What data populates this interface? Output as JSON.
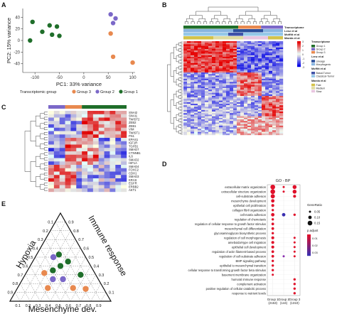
{
  "panels": {
    "A": {
      "label": "A",
      "chart_data": {
        "type": "scatter",
        "xlabel": "PC1: 33% variance",
        "ylabel": "PC2: 15% variance",
        "xlim": [
          -125,
          105
        ],
        "ylim": [
          -55,
          55
        ],
        "xticks": [
          "-100",
          "-50",
          "0",
          "50",
          "100"
        ],
        "yticks": [
          "-40",
          "-20",
          "0",
          "20",
          "40"
        ],
        "legend_title": "Transcriptomic group",
        "legend": [
          {
            "label": "Group 3",
            "color": "#e8894f"
          },
          {
            "label": "Group 2",
            "color": "#7b68c8"
          },
          {
            "label": "Group 1",
            "color": "#1f6e2a"
          }
        ],
        "points": [
          {
            "x": -110,
            "y": 0,
            "group": 1
          },
          {
            "x": -85,
            "y": 15,
            "group": 1
          },
          {
            "x": -65,
            "y": 10,
            "group": 1
          },
          {
            "x": -70,
            "y": 26,
            "group": 1
          },
          {
            "x": -55,
            "y": 24,
            "group": 1
          },
          {
            "x": -50,
            "y": 8,
            "group": 1
          },
          {
            "x": -105,
            "y": 32,
            "group": 1
          },
          {
            "x": 55,
            "y": 45,
            "group": 2
          },
          {
            "x": 65,
            "y": 38,
            "group": 2
          },
          {
            "x": 60,
            "y": 30,
            "group": 2
          },
          {
            "x": 55,
            "y": 12,
            "group": 3
          },
          {
            "x": 60,
            "y": -28,
            "group": 3
          },
          {
            "x": 100,
            "y": -38,
            "group": 3
          }
        ]
      }
    },
    "B": {
      "label": "B",
      "tracks": [
        "Transcriptome",
        "Lenz et al",
        "Moffitt et al",
        "Maeda et al"
      ],
      "legend": [
        {
          "title": "Transcriptome",
          "items": [
            {
              "label": "Group 1",
              "color": "#1f6e2a"
            },
            {
              "label": "Group 2",
              "color": "#7b68c8"
            },
            {
              "label": "Group 3",
              "color": "#e8894f"
            }
          ]
        },
        {
          "title": "Lenz et al",
          "items": [
            {
              "label": "Lineage",
              "color": "#2b4f9c"
            },
            {
              "label": "Morphogenic",
              "color": "#88b5e0"
            }
          ]
        },
        {
          "title": "Moffitt et al",
          "items": [
            {
              "label": "Basal-Tumor",
              "color": "#3f52a8"
            },
            {
              "label": "Classical-Tumor",
              "color": "#95c8e8"
            }
          ]
        },
        {
          "title": "Maeda et al",
          "items": [
            {
              "label": "Fast",
              "color": "#d4c34a"
            },
            {
              "label": "Medium",
              "color": "#e0dca0"
            },
            {
              "label": "Slow",
              "color": "#e9c5e0"
            }
          ]
        }
      ],
      "scale_ticks": [
        "3",
        "2",
        "1",
        "0",
        "-1",
        "-2",
        "-3"
      ]
    },
    "C": {
      "label": "C",
      "genes": [
        "SNAI2",
        "SNAI1",
        "TWIST2",
        "ZEB2",
        "ZEB1",
        "VIM",
        "TWIST1",
        "FN1",
        "EPAS1",
        "IGF1R",
        "TGFB1",
        "SMAD7",
        "CTNNB1",
        "IL6",
        "SMAD2",
        "HIF1A",
        "SMAD4",
        "FOXC2",
        "CDH1",
        "SMAD3",
        "KRAS",
        "EGFR",
        "ERBB2",
        "AKT1"
      ]
    },
    "D": {
      "label": "D",
      "chart_data": {
        "type": "scatter",
        "title": "GO - BP",
        "categories": [
          "Group 1\n(2153)",
          "Group 2\n(144)",
          "Group 3\n(1310)"
        ],
        "category_lines": [
          [
            "Group 1",
            "(2153)"
          ],
          [
            "Group 2",
            "(144)"
          ],
          [
            "Group 3",
            "(1310)"
          ]
        ],
        "terms": [
          "extracellular matrix organization",
          "extracellular structure organization",
          "cell-substrate adhesion",
          "mesenchyme development",
          "epithelial cell proliferation",
          "collagen fibril organization",
          "cell-matrix adhesion",
          "regulation of chemotaxis",
          "regulation of cellular response to growth factor stimulus",
          "mesenchymal cell differentiation",
          "glycosaminoglycan biosynthetic process",
          "regulation of cell morphogenesis",
          "ameboidal-type cell migration",
          "epithelial cell development",
          "regulation of actin filament-based process",
          "regulation of cell-substrate adhesion",
          "BMP signaling pathway",
          "epithelial to mesenchymal transition",
          "cellular response to transforming growth factor beta stimulus",
          "basement membrane organization",
          "humoral immune response",
          "complement activation",
          "positive regulation of cellular catabolic process",
          "response to nutrient levels"
        ],
        "dots": [
          {
            "t": 0,
            "g": 0,
            "r": 0.15,
            "c": "#e0102a"
          },
          {
            "t": 0,
            "g": 1,
            "r": 0.05,
            "c": "#e0102a"
          },
          {
            "t": 0,
            "g": 2,
            "r": 0.12,
            "c": "#e0102a"
          },
          {
            "t": 1,
            "g": 0,
            "r": 0.15,
            "c": "#e0102a"
          },
          {
            "t": 1,
            "g": 1,
            "r": 0.05,
            "c": "#e0102a"
          },
          {
            "t": 1,
            "g": 2,
            "r": 0.12,
            "c": "#e0102a"
          },
          {
            "t": 2,
            "g": 0,
            "r": 0.13,
            "c": "#e0102a"
          },
          {
            "t": 2,
            "g": 2,
            "r": 0.08,
            "c": "#e0102a"
          },
          {
            "t": 3,
            "g": 0,
            "r": 0.1,
            "c": "#e0102a"
          },
          {
            "t": 4,
            "g": 0,
            "r": 0.08,
            "c": "#e0102a"
          },
          {
            "t": 5,
            "g": 0,
            "r": 0.06,
            "c": "#e0102a"
          },
          {
            "t": 6,
            "g": 0,
            "r": 0.1,
            "c": "#e0102a"
          },
          {
            "t": 6,
            "g": 1,
            "r": 0.1,
            "c": "#3a2fb0"
          },
          {
            "t": 6,
            "g": 2,
            "r": 0.06,
            "c": "#e0102a"
          },
          {
            "t": 7,
            "g": 0,
            "r": 0.06,
            "c": "#e0102a"
          },
          {
            "t": 8,
            "g": 0,
            "r": 0.07,
            "c": "#e0102a"
          },
          {
            "t": 9,
            "g": 0,
            "r": 0.07,
            "c": "#e0102a"
          },
          {
            "t": 10,
            "g": 0,
            "r": 0.06,
            "c": "#e0102a"
          },
          {
            "t": 11,
            "g": 0,
            "r": 0.08,
            "c": "#e0102a"
          },
          {
            "t": 11,
            "g": 2,
            "r": 0.05,
            "c": "#e0102a"
          },
          {
            "t": 12,
            "g": 0,
            "r": 0.08,
            "c": "#e0102a"
          },
          {
            "t": 12,
            "g": 2,
            "r": 0.05,
            "c": "#e0102a"
          },
          {
            "t": 13,
            "g": 0,
            "r": 0.08,
            "c": "#e0102a"
          },
          {
            "t": 13,
            "g": 2,
            "r": 0.05,
            "c": "#e0102a"
          },
          {
            "t": 14,
            "g": 0,
            "r": 0.07,
            "c": "#e0102a"
          },
          {
            "t": 14,
            "g": 2,
            "r": 0.05,
            "c": "#e0102a"
          },
          {
            "t": 15,
            "g": 0,
            "r": 0.07,
            "c": "#e0102a"
          },
          {
            "t": 15,
            "g": 1,
            "r": 0.05,
            "c": "#8a2fb0"
          },
          {
            "t": 15,
            "g": 2,
            "r": 0.05,
            "c": "#e0102a"
          },
          {
            "t": 16,
            "g": 0,
            "r": 0.06,
            "c": "#e0102a"
          },
          {
            "t": 17,
            "g": 0,
            "r": 0.06,
            "c": "#e0102a"
          },
          {
            "t": 18,
            "g": 0,
            "r": 0.06,
            "c": "#e0102a"
          },
          {
            "t": 19,
            "g": 0,
            "r": 0.05,
            "c": "#e0102a"
          },
          {
            "t": 20,
            "g": 2,
            "r": 0.06,
            "c": "#e0102a"
          },
          {
            "t": 21,
            "g": 2,
            "r": 0.06,
            "c": "#e0102a"
          },
          {
            "t": 22,
            "g": 2,
            "r": 0.06,
            "c": "#e0102a"
          },
          {
            "t": 23,
            "g": 2,
            "r": 0.06,
            "c": "#e0102a"
          }
        ],
        "size_legend_title": "GeneRatio",
        "size_legend": [
          "0.05",
          "0.10",
          "0.15"
        ],
        "size_values": [
          0.05,
          0.1,
          0.15
        ],
        "color_legend_title": "p.adjust",
        "color_ticks": [
          "0.01",
          "0.02",
          "0.03"
        ]
      }
    },
    "E": {
      "label": "E",
      "chart_data": {
        "type": "scatter",
        "axis_left": "Hypoxia",
        "axis_right": "Immune response",
        "axis_bottom": "Mesenchyme dev.",
        "ticks": [
          "0.1",
          "0.2",
          "0.3",
          "0.4",
          "0.5",
          "0.6",
          "0.7",
          "0.8",
          "0.9"
        ],
        "points": [
          {
            "a": 0.55,
            "b": 0.3,
            "c": 0.15,
            "group": 3
          },
          {
            "a": 0.3,
            "b": 0.55,
            "c": 0.15,
            "group": 3
          },
          {
            "a": 0.18,
            "b": 0.68,
            "c": 0.14,
            "group": 3
          },
          {
            "a": 0.35,
            "b": 0.4,
            "c": 0.25,
            "group": 2
          },
          {
            "a": 0.4,
            "b": 0.25,
            "c": 0.35,
            "group": 1
          },
          {
            "a": 0.3,
            "b": 0.3,
            "c": 0.4,
            "group": 1
          },
          {
            "a": 0.2,
            "b": 0.35,
            "c": 0.45,
            "group": 1
          },
          {
            "a": 0.45,
            "b": 0.3,
            "c": 0.25,
            "group": 2
          },
          {
            "a": 0.25,
            "b": 0.22,
            "c": 0.53,
            "group": 1
          },
          {
            "a": 0.32,
            "b": 0.18,
            "c": 0.5,
            "group": 2
          },
          {
            "a": 0.5,
            "b": 0.18,
            "c": 0.32,
            "group": 3
          },
          {
            "a": 0.15,
            "b": 0.55,
            "c": 0.3,
            "group": 1
          }
        ]
      }
    }
  },
  "colors": {
    "group1": "#1f6e2a",
    "group2": "#7b68c8",
    "group3": "#e8894f"
  }
}
